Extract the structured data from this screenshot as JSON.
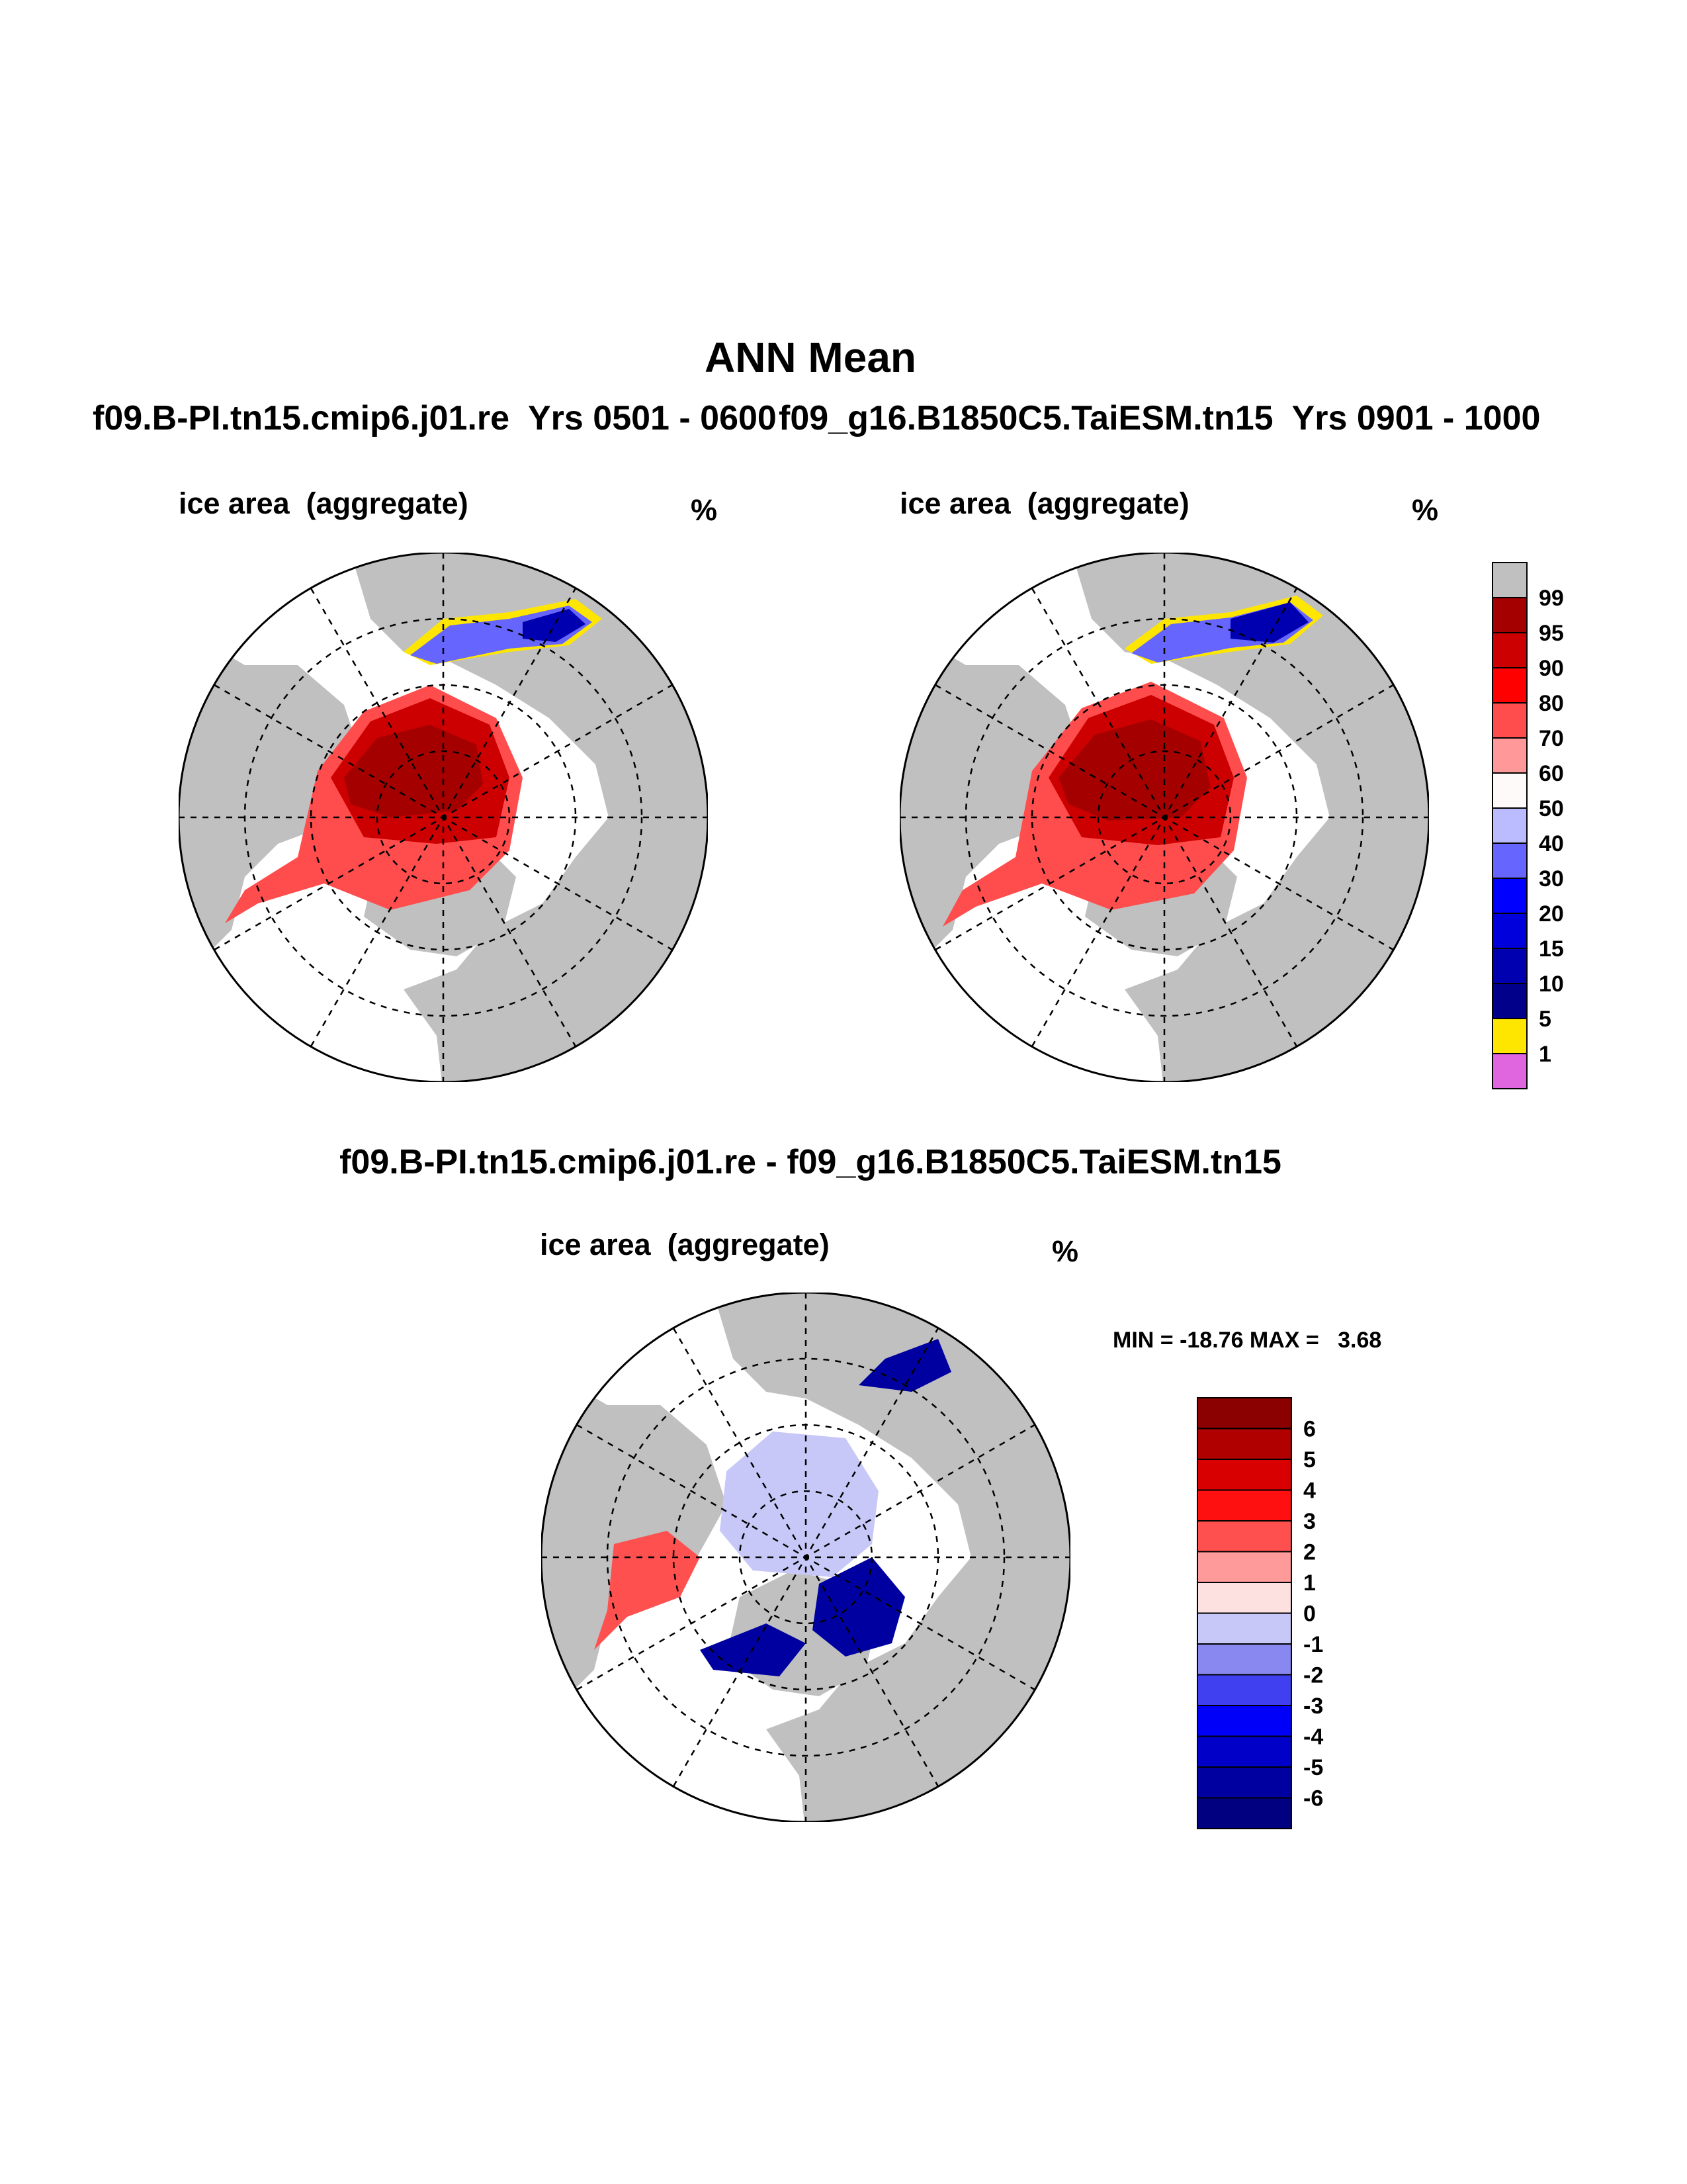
{
  "figure": {
    "main_title": "ANN Mean",
    "case_left": "f09.B-PI.tn15.cmip6.j01.re  Yrs 0501 - 0600",
    "case_right": "f09_g16.B1850C5.TaiESM.tn15  Yrs 0901 - 1000",
    "diff_title": "f09.B-PI.tn15.cmip6.j01.re - f09_g16.B1850C5.TaiESM.tn15"
  },
  "panels": [
    {
      "id": "left",
      "variable": "ice area  (aggregate)",
      "unit": "%"
    },
    {
      "id": "right",
      "variable": "ice area  (aggregate)",
      "unit": "%"
    },
    {
      "id": "diff",
      "variable": "ice area  (aggregate)",
      "unit": "%",
      "stats": "MIN = -18.76 MAX =   3.68"
    }
  ],
  "colorbar_abs": {
    "labels": [
      "99",
      "95",
      "90",
      "80",
      "70",
      "60",
      "50",
      "40",
      "30",
      "20",
      "15",
      "10",
      "5",
      "1"
    ],
    "colors": [
      "#c0c0c0",
      "#a50000",
      "#cc0000",
      "#ff0000",
      "#ff4c4c",
      "#ff9999",
      "#fffafa",
      "#bbbbff",
      "#6666ff",
      "#0000ff",
      "#0000dd",
      "#0000b0",
      "#00008a",
      "#ffe600",
      "#e066e0"
    ]
  },
  "colorbar_diff": {
    "labels": [
      "6",
      "5",
      "4",
      "3",
      "2",
      "1",
      "0",
      "-1",
      "-2",
      "-3",
      "-4",
      "-5",
      "-6"
    ],
    "colors": [
      "#8b0000",
      "#b00000",
      "#d80000",
      "#ff1010",
      "#ff5050",
      "#ff9a9a",
      "#fde0e0",
      "#c8c8f8",
      "#8888f0",
      "#4040f0",
      "#0000f8",
      "#0000c8",
      "#0000a0",
      "#000080"
    ]
  },
  "map_colors": {
    "land": "#c0c0c0",
    "ocean": "#ffffff",
    "ice_core": "#a50000",
    "ice_mid": "#cc0000",
    "ice_edge": "#ff4c4c",
    "ice_low": "#6666ff",
    "ice_min": "#0000b0",
    "ice_fringe": "#ffe600",
    "diff_pos": "#ff5050",
    "diff_neg_weak": "#c8c8f8",
    "diff_neg_strong": "#0000a0"
  }
}
